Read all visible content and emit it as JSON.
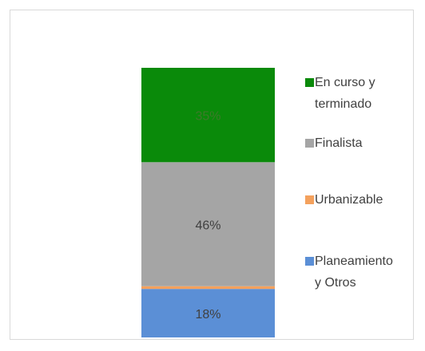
{
  "chart_data": {
    "type": "stacked_bar",
    "series": [
      {
        "name": "Planeamiento y Otros",
        "color": "#5b8fd6",
        "values": [
          18
        ],
        "value_labels": [
          "18%"
        ]
      },
      {
        "name": "Urbanizable",
        "color": "#f4a15d",
        "values": [
          1
        ],
        "value_labels": [
          "1%"
        ]
      },
      {
        "name": "Finalista",
        "color": "#a5a5a5",
        "values": [
          46
        ],
        "value_labels": [
          "46%"
        ]
      },
      {
        "name": "En curso y terminado",
        "color": "#0a8a0a",
        "values": [
          35
        ],
        "value_labels": [
          "35%"
        ]
      }
    ]
  }
}
